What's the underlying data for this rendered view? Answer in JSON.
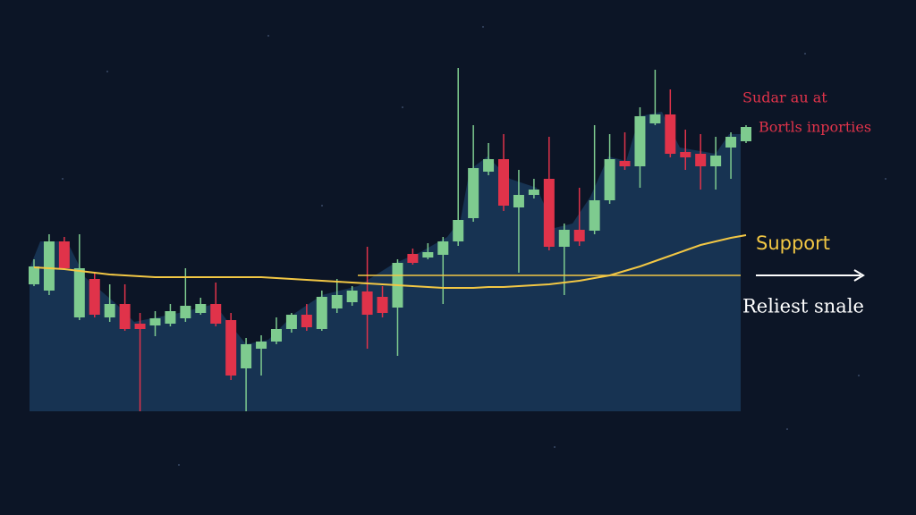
{
  "chart_data": {
    "type": "candlestick",
    "ylim": [
      0,
      100
    ],
    "up_color": "#7ecb8f",
    "down_color": "#e0334a",
    "line_color": "#f2c744",
    "area_color": "#173352",
    "open": [
      35.5,
      33.75,
      47.5,
      26.25,
      37,
      26.25,
      30,
      24.5,
      24,
      24.5,
      26,
      27.5,
      30,
      25.5,
      12,
      17.5,
      19.5,
      23,
      27,
      23,
      28.75,
      30.5,
      33.5,
      32,
      29,
      44,
      43,
      43.75,
      47.5,
      54,
      67,
      70.5,
      57,
      60.5,
      65,
      46,
      50.75,
      50.5,
      59,
      70,
      68.5,
      80.5,
      83,
      72.5,
      72,
      68.5,
      73.75,
      75.5
    ],
    "high": [
      42.5,
      49.5,
      48.75,
      49.5,
      38.75,
      35.5,
      35.5,
      27.5,
      28,
      30,
      40,
      31.75,
      36,
      27.5,
      20.5,
      21.25,
      26.25,
      27.5,
      30,
      33.75,
      37,
      35,
      46,
      35,
      42.5,
      45.5,
      47,
      48.75,
      96,
      80,
      75,
      77.5,
      67.5,
      65,
      76.75,
      52.5,
      62.5,
      80,
      77.5,
      78,
      85,
      95.5,
      90,
      78.75,
      77.5,
      76.75,
      78,
      80
    ],
    "low": [
      35,
      32.5,
      39.5,
      25.5,
      26.25,
      25,
      22.5,
      0,
      21,
      23.75,
      25,
      27,
      23.75,
      8.75,
      0,
      10,
      18.75,
      22,
      22.5,
      22.5,
      27.5,
      29.5,
      17.5,
      26.25,
      15.5,
      41,
      42.5,
      30,
      46.25,
      53,
      66,
      56,
      38.75,
      59.5,
      45,
      32.5,
      46.25,
      49.5,
      58,
      67.5,
      62.5,
      80,
      71,
      67.5,
      62,
      62,
      65,
      75
    ],
    "close": [
      40.5,
      47.5,
      40,
      40,
      27,
      30,
      23,
      23,
      26,
      28,
      29.5,
      30,
      24.5,
      10,
      18.75,
      19.5,
      23,
      27,
      23.5,
      32,
      32.5,
      33.75,
      27,
      27.5,
      41.5,
      41.5,
      44.5,
      47.5,
      53.5,
      68,
      70.5,
      57.5,
      60.5,
      62,
      46,
      50.75,
      47.5,
      59,
      70.5,
      68.5,
      82.5,
      83,
      72,
      71,
      68.5,
      71.5,
      76.75,
      79.5
    ],
    "moving_average": [
      40.25,
      40,
      39.75,
      39.25,
      38.75,
      38.25,
      38,
      37.75,
      37.5,
      37.5,
      37.5,
      37.5,
      37.5,
      37.5,
      37.5,
      37.5,
      37.25,
      37,
      36.75,
      36.5,
      36.25,
      36,
      35.75,
      35.5,
      35.25,
      35,
      34.75,
      34.5,
      34.5,
      34.5,
      34.75,
      34.75,
      35,
      35.25,
      35.5,
      36,
      36.5,
      37.25,
      38,
      39.25,
      40.5,
      42,
      43.5,
      45,
      46.5,
      47.5,
      48.5,
      49.25
    ],
    "support_level": 38,
    "annotations": {
      "top_line1": "Sudar au at",
      "top_line2": "Bortls inporties",
      "support": "Support",
      "bottom": "Reliest snale"
    }
  }
}
